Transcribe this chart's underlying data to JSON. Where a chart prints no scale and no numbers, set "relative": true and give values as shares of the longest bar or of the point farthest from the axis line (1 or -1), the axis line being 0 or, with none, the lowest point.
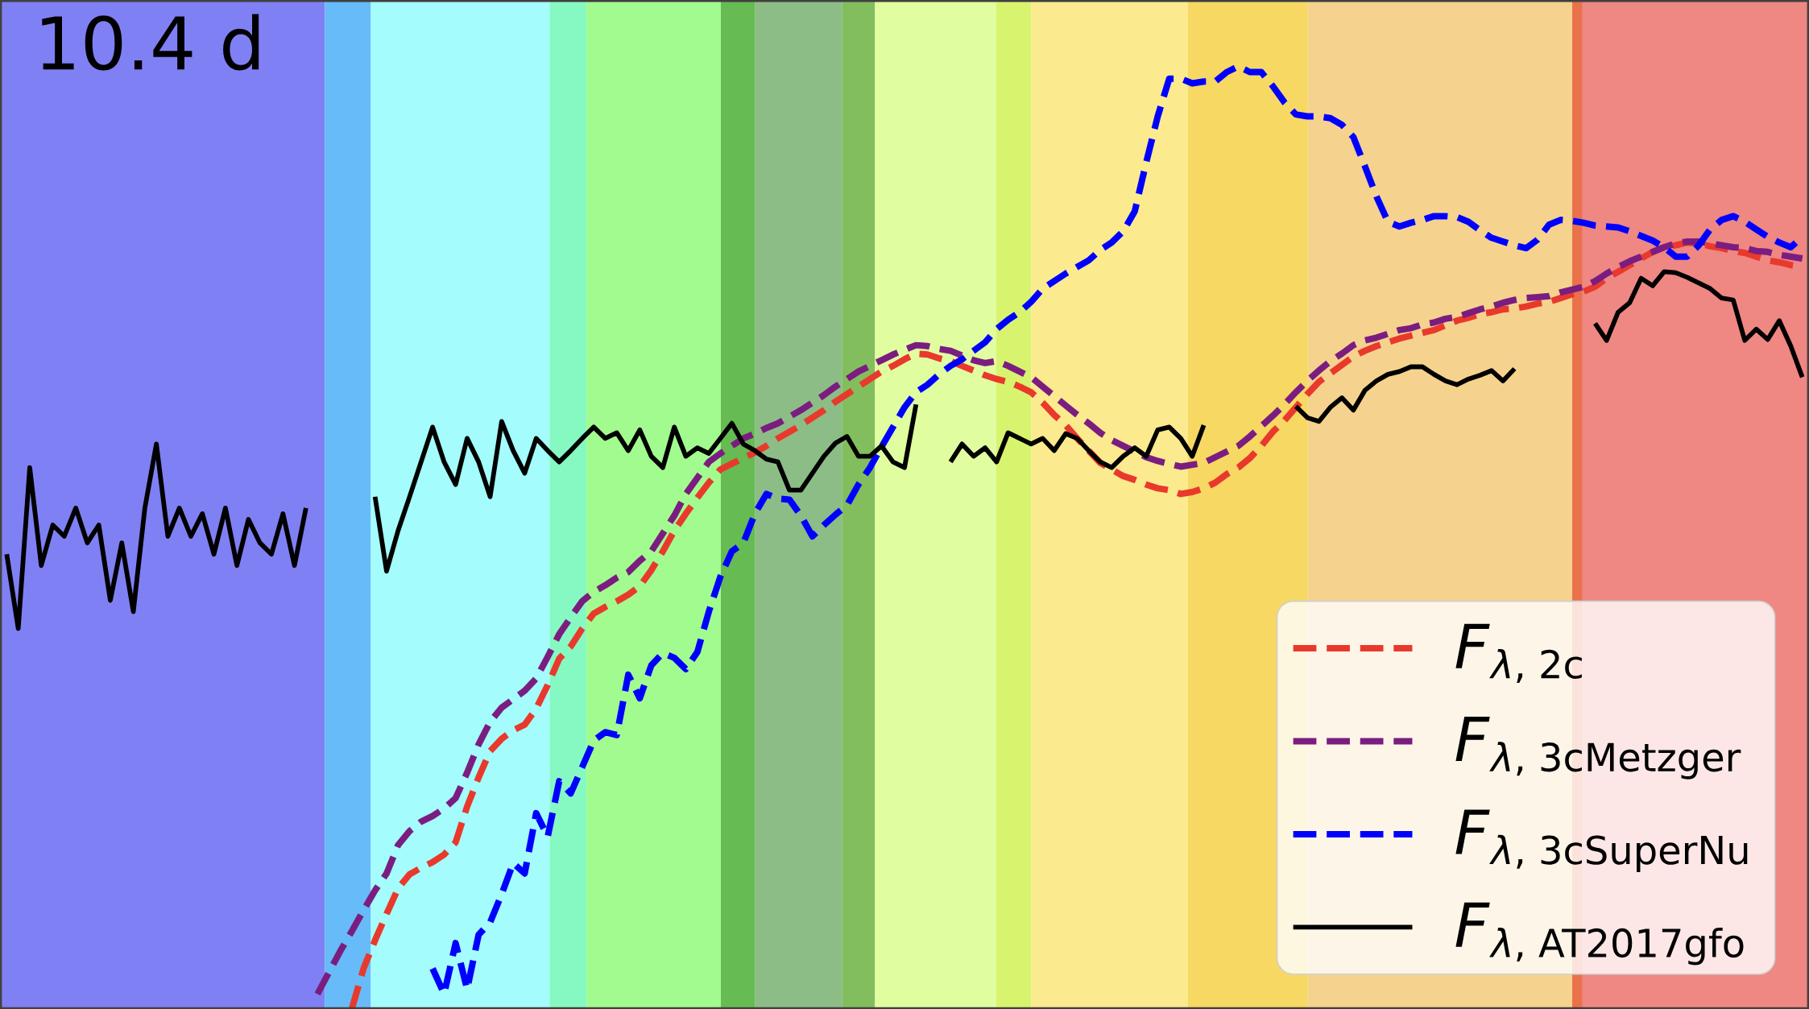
{
  "chart_data": {
    "type": "line",
    "relative": true,
    "legend": "bottom right",
    "annotations": [
      "10.4 d"
    ],
    "categories": [
      null,
      null,
      null,
      null,
      null,
      null,
      null,
      null,
      null,
      null,
      null,
      null,
      null,
      null,
      null,
      null,
      null,
      null,
      null,
      null,
      null,
      null,
      null,
      null,
      null,
      null,
      null,
      null,
      null,
      null,
      null,
      null,
      null,
      null,
      null,
      null,
      null,
      null,
      null,
      null,
      null,
      null,
      null,
      null,
      null,
      null,
      null,
      null,
      null,
      null,
      null,
      null,
      null,
      null,
      null,
      null,
      null,
      null,
      null,
      null,
      null,
      null,
      null,
      null,
      null,
      null,
      null,
      null,
      null,
      null,
      null,
      null,
      null,
      null,
      null,
      null,
      null,
      null,
      null,
      null,
      null,
      null,
      null,
      null,
      null,
      null,
      null,
      null,
      null,
      null,
      null,
      null,
      null,
      null,
      null,
      null,
      null,
      null,
      null,
      null,
      null,
      null,
      null,
      null,
      null,
      null,
      null,
      null,
      null,
      null,
      null,
      null,
      null,
      null,
      null,
      null,
      null,
      null,
      null,
      null,
      null,
      null,
      null,
      null,
      null,
      null,
      null,
      null,
      null,
      null,
      null,
      null,
      null,
      null,
      null,
      null,
      null,
      null,
      null,
      null,
      null,
      null,
      null,
      null,
      null,
      null,
      null,
      null,
      null,
      null,
      null,
      null,
      null,
      null,
      null,
      null,
      null
    ],
    "series": [
      {
        "name": "F_{\\lambda\\text{, 2c}}",
        "color": "#e9392c",
        "line_style": "dashed",
        "values": [
          null,
          null,
          null,
          null,
          null,
          null,
          null,
          null,
          null,
          null,
          null,
          null,
          null,
          null,
          null,
          null,
          null,
          null,
          null,
          null,
          null,
          null,
          null,
          null,
          null,
          null,
          null,
          null,
          null,
          null,
          0.0,
          0.042,
          0.072,
          0.1,
          0.127,
          0.142,
          0.149,
          0.155,
          0.163,
          0.176,
          0.214,
          0.245,
          0.273,
          0.286,
          0.295,
          0.301,
          0.318,
          0.343,
          0.371,
          0.384,
          0.403,
          0.419,
          0.426,
          0.432,
          0.439,
          0.448,
          0.465,
          0.485,
          0.507,
          0.525,
          0.542,
          0.558,
          0.572,
          0.578,
          0.584,
          0.59,
          0.597,
          0.605,
          0.612,
          0.619,
          0.627,
          0.635,
          0.644,
          0.652,
          0.66,
          0.668,
          0.676,
          0.682,
          0.689,
          0.695,
          0.694,
          0.69,
          0.687,
          0.682,
          0.677,
          0.672,
          0.668,
          0.665,
          0.66,
          0.654,
          0.643,
          0.63,
          0.619,
          0.605,
          0.592,
          0.579,
          0.572,
          0.565,
          0.561,
          0.556,
          0.552,
          0.55,
          0.546,
          0.548,
          0.552,
          0.558,
          0.567,
          0.574,
          0.584,
          0.597,
          0.612,
          0.624,
          0.638,
          0.652,
          0.665,
          0.674,
          0.683,
          0.692,
          0.698,
          0.703,
          0.707,
          0.711,
          0.714,
          0.717,
          0.72,
          0.725,
          0.73,
          0.733,
          0.737,
          0.739,
          0.742,
          0.743,
          0.745,
          0.748,
          0.75,
          0.754,
          0.758,
          0.761,
          0.766,
          0.775,
          0.782,
          0.789,
          0.796,
          0.803,
          0.808,
          0.81,
          0.813,
          0.812,
          0.809,
          0.807,
          0.804,
          0.802,
          0.798,
          0.794,
          0.792,
          0.789,
          0.787
        ]
      },
      {
        "name": "F_{\\lambda\\text{, 3cMetzger}}",
        "color": "#7b1d80",
        "line_style": "dashed",
        "values": [
          null,
          null,
          null,
          null,
          null,
          null,
          null,
          null,
          null,
          null,
          null,
          null,
          null,
          null,
          null,
          null,
          null,
          null,
          null,
          null,
          null,
          null,
          null,
          null,
          null,
          null,
          null,
          0.015,
          0.038,
          0.061,
          0.082,
          0.104,
          0.125,
          0.143,
          0.173,
          0.188,
          0.198,
          0.204,
          0.212,
          0.223,
          0.25,
          0.28,
          0.304,
          0.319,
          0.328,
          0.337,
          0.35,
          0.373,
          0.397,
          0.415,
          0.432,
          0.442,
          0.449,
          0.457,
          0.463,
          0.475,
          0.485,
          0.504,
          0.523,
          0.546,
          0.563,
          0.58,
          0.589,
          0.597,
          0.605,
          0.61,
          0.616,
          0.621,
          0.628,
          0.635,
          0.643,
          0.651,
          0.66,
          0.668,
          0.676,
          0.682,
          0.688,
          0.694,
          0.699,
          0.704,
          0.703,
          0.7,
          0.698,
          0.693,
          0.688,
          0.685,
          0.687,
          0.682,
          0.676,
          0.67,
          0.66,
          0.65,
          0.64,
          0.63,
          0.621,
          0.611,
          0.603,
          0.597,
          0.591,
          0.585,
          0.581,
          0.578,
          0.575,
          0.577,
          0.579,
          0.585,
          0.591,
          0.597,
          0.607,
          0.618,
          0.629,
          0.641,
          0.654,
          0.666,
          0.677,
          0.687,
          0.695,
          0.704,
          0.709,
          0.712,
          0.716,
          0.72,
          0.722,
          0.726,
          0.728,
          0.732,
          0.734,
          0.738,
          0.742,
          0.745,
          0.749,
          0.752,
          0.754,
          0.755,
          0.756,
          0.76,
          0.763,
          0.766,
          0.772,
          0.78,
          0.787,
          0.793,
          0.798,
          0.803,
          0.808,
          0.812,
          0.814,
          0.814,
          0.812,
          0.81,
          0.808,
          0.807,
          0.804,
          0.803,
          0.8,
          0.798,
          0.796
        ]
      },
      {
        "name": "F_{\\lambda\\text{, 3cSuperNu}}",
        "color": "#0000ff",
        "line_style": "dashed",
        "values": [
          null,
          null,
          null,
          null,
          null,
          null,
          null,
          null,
          null,
          null,
          null,
          null,
          null,
          null,
          null,
          null,
          null,
          null,
          null,
          null,
          null,
          null,
          null,
          null,
          null,
          null,
          null,
          null,
          null,
          null,
          null,
          null,
          null,
          null,
          null,
          null,
          null,
          0.042,
          0.015,
          0.069,
          0.02,
          0.078,
          0.091,
          0.121,
          0.154,
          0.143,
          0.207,
          0.182,
          0.241,
          0.228,
          0.256,
          0.284,
          0.293,
          0.29,
          0.354,
          0.329,
          0.364,
          0.377,
          0.372,
          0.36,
          0.378,
          0.421,
          0.458,
          0.485,
          0.494,
          0.525,
          0.546,
          0.541,
          0.54,
          0.523,
          0.501,
          0.513,
          0.524,
          0.534,
          0.556,
          0.574,
          0.596,
          0.617,
          0.638,
          0.654,
          0.662,
          0.673,
          0.682,
          0.689,
          0.698,
          0.707,
          0.721,
          0.731,
          0.739,
          0.75,
          0.764,
          0.772,
          0.78,
          0.787,
          0.794,
          0.805,
          0.813,
          0.825,
          0.846,
          0.898,
          0.947,
          0.987,
          0.987,
          0.982,
          0.984,
          0.984,
          0.994,
          1.0,
          0.994,
          0.994,
          0.979,
          0.962,
          0.949,
          0.947,
          0.947,
          0.945,
          0.938,
          0.925,
          0.894,
          0.862,
          0.835,
          0.83,
          0.834,
          0.837,
          0.841,
          0.841,
          0.84,
          0.835,
          0.826,
          0.818,
          0.814,
          0.81,
          0.807,
          0.816,
          0.832,
          0.837,
          0.836,
          0.834,
          0.831,
          0.83,
          0.829,
          0.825,
          0.82,
          0.815,
          0.808,
          0.798,
          0.798,
          0.81,
          0.827,
          0.837,
          0.841,
          0.835,
          0.827,
          0.819,
          0.813,
          0.808,
          0.819
        ]
      },
      {
        "name": "F_{\\lambda\\text{, AT2017gfo}}",
        "color": "#000000",
        "line_style": "solid",
        "values": [
          0.482,
          0.403,
          0.574,
          0.47,
          0.513,
          0.501,
          0.531,
          0.494,
          0.513,
          0.433,
          0.494,
          0.421,
          0.531,
          0.599,
          0.501,
          0.531,
          0.501,
          0.525,
          0.482,
          0.531,
          0.47,
          0.519,
          0.494,
          0.482,
          0.525,
          0.47,
          0.531,
          null,
          null,
          null,
          null,
          null,
          0.543,
          0.464,
          0.507,
          0.543,
          0.58,
          0.617,
          0.58,
          0.556,
          0.605,
          0.58,
          0.543,
          0.623,
          0.592,
          0.568,
          0.605,
          0.592,
          0.58,
          0.592,
          0.605,
          0.617,
          0.605,
          0.611,
          0.592,
          0.614,
          0.586,
          0.574,
          0.617,
          0.586,
          0.595,
          0.589,
          0.605,
          0.621,
          0.599,
          0.592,
          0.583,
          0.58,
          0.55,
          0.55,
          0.568,
          0.586,
          0.6,
          0.607,
          0.586,
          0.586,
          0.597,
          0.58,
          0.574,
          0.641,
          null,
          null,
          0.58,
          0.599,
          0.586,
          0.595,
          0.58,
          0.611,
          0.605,
          0.599,
          0.605,
          0.592,
          0.61,
          0.605,
          0.592,
          0.58,
          0.574,
          0.586,
          0.595,
          0.586,
          0.614,
          0.617,
          0.605,
          0.586,
          0.619,
          null,
          null,
          null,
          null,
          null,
          null,
          null,
          0.639,
          0.627,
          0.623,
          0.638,
          0.648,
          0.635,
          0.656,
          0.666,
          0.673,
          0.676,
          0.681,
          0.681,
          0.673,
          0.666,
          0.662,
          0.668,
          0.672,
          0.677,
          0.666,
          0.679,
          null,
          null,
          null,
          null,
          null,
          null,
          0.727,
          0.709,
          0.739,
          0.749,
          0.775,
          0.767,
          0.782,
          0.781,
          0.776,
          0.77,
          0.764,
          0.754,
          0.752,
          0.709,
          0.721,
          0.71,
          0.73,
          0.703,
          0.67
        ]
      }
    ]
  }
}
